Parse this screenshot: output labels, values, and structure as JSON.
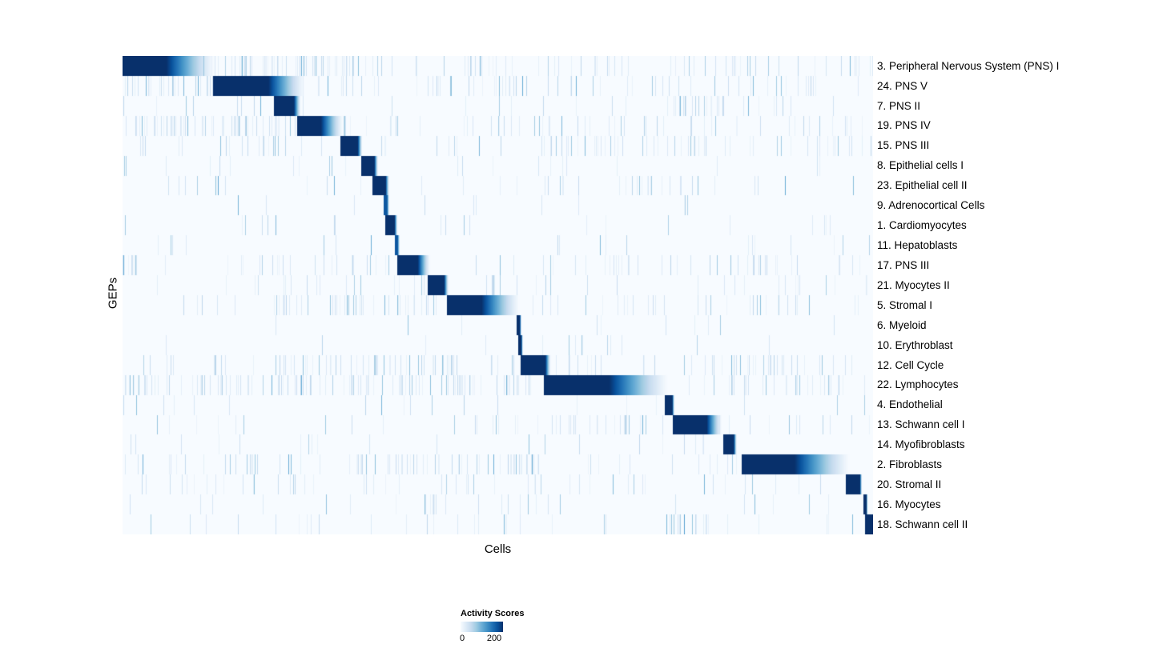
{
  "chart_data": {
    "type": "heatmap",
    "title": "",
    "xlabel": "Cells",
    "ylabel": "GEPs",
    "x_axis_note": "individual cells, unlabeled; positions given as fraction 0-1 of cell axis",
    "legend_position": "bottom-center",
    "colorbar": {
      "label": "Activity Scores",
      "min": 0,
      "max": 200,
      "colormap": [
        "#f7fbff",
        "#deebf7",
        "#c6dbef",
        "#9ecae1",
        "#6baed6",
        "#4292c6",
        "#2171b5",
        "#08519c",
        "#08306b"
      ]
    },
    "rows": [
      {
        "label": "3. Peripheral Nervous System (PNS) I",
        "block": {
          "start": 0.0,
          "full_end": 0.058,
          "end": 0.122,
          "value": 1.0
        },
        "noise": 0.45,
        "bands": [
          {
            "start": 0.12,
            "end": 0.35,
            "level": 0.35
          }
        ]
      },
      {
        "label": "24. PNS V",
        "block": {
          "start": 0.12,
          "full_end": 0.194,
          "end": 0.242,
          "value": 1.0
        },
        "noise": 0.4,
        "bands": [
          {
            "start": 0.0,
            "end": 0.12,
            "level": 0.35
          }
        ]
      },
      {
        "label": "7. PNS II",
        "block": {
          "start": 0.201,
          "full_end": 0.228,
          "end": 0.237,
          "value": 1.0
        },
        "noise": 0.15,
        "bands": [
          {
            "start": 0.72,
            "end": 0.81,
            "level": 0.5
          }
        ]
      },
      {
        "label": "19. PNS IV",
        "block": {
          "start": 0.232,
          "full_end": 0.264,
          "end": 0.293,
          "value": 1.0
        },
        "noise": 0.38,
        "bands": [
          {
            "start": 0.0,
            "end": 0.23,
            "level": 0.5
          }
        ]
      },
      {
        "label": "15. PNS III",
        "block": {
          "start": 0.29,
          "full_end": 0.313,
          "end": 0.319,
          "value": 1.0
        },
        "noise": 0.3,
        "bands": [
          {
            "start": 0.55,
            "end": 0.78,
            "level": 0.35
          }
        ]
      },
      {
        "label": "8. Epithelial cells I",
        "block": {
          "start": 0.317,
          "full_end": 0.335,
          "end": 0.34,
          "value": 1.0
        },
        "noise": 0.08
      },
      {
        "label": "23. Epithelial cell II",
        "block": {
          "start": 0.332,
          "full_end": 0.35,
          "end": 0.355,
          "value": 1.0
        },
        "noise": 0.1,
        "bands": [
          {
            "start": 0.55,
            "end": 0.75,
            "level": 0.22
          }
        ]
      },
      {
        "label": "9. Adrenocortical Cells",
        "block": {
          "start": 0.347,
          "full_end": 0.352,
          "end": 0.355,
          "value": 0.85
        },
        "noise": 0.05
      },
      {
        "label": "1. Cardiomyocytes",
        "block": {
          "start": 0.35,
          "full_end": 0.362,
          "end": 0.366,
          "value": 1.0
        },
        "noise": 0.06
      },
      {
        "label": "11. Hepatoblasts",
        "block": {
          "start": 0.362,
          "full_end": 0.366,
          "end": 0.369,
          "value": 0.85
        },
        "noise": 0.05
      },
      {
        "label": "17. PNS III",
        "block": {
          "start": 0.365,
          "full_end": 0.393,
          "end": 0.409,
          "value": 1.0
        },
        "noise": 0.28,
        "bands": [
          {
            "start": 0.0,
            "end": 0.02,
            "level": 0.8
          }
        ]
      },
      {
        "label": "21. Myocytes II",
        "block": {
          "start": 0.406,
          "full_end": 0.428,
          "end": 0.434,
          "value": 1.0
        },
        "noise": 0.18,
        "bands": [
          {
            "start": 0.985,
            "end": 1.0,
            "level": 0.8
          }
        ]
      },
      {
        "label": "5. Stromal I",
        "block": {
          "start": 0.432,
          "full_end": 0.478,
          "end": 0.528,
          "value": 1.0
        },
        "noise": 0.22,
        "bands": [
          {
            "start": 0.2,
            "end": 0.42,
            "level": 0.35
          },
          {
            "start": 0.82,
            "end": 0.86,
            "level": 0.35
          }
        ]
      },
      {
        "label": "6. Myeloid",
        "block": {
          "start": 0.525,
          "full_end": 0.529,
          "end": 0.531,
          "value": 1.0
        },
        "noise": 0.05
      },
      {
        "label": "10. Erythroblast",
        "block": {
          "start": 0.527,
          "full_end": 0.531,
          "end": 0.533,
          "value": 1.0
        },
        "noise": 0.05
      },
      {
        "label": "12. Cell Cycle",
        "block": {
          "start": 0.53,
          "full_end": 0.563,
          "end": 0.57,
          "value": 1.0
        },
        "noise": 0.32,
        "bands": [
          {
            "start": 0.2,
            "end": 0.45,
            "level": 0.4
          },
          {
            "start": 0.78,
            "end": 0.97,
            "level": 0.4
          }
        ]
      },
      {
        "label": "22. Lymphocytes",
        "block": {
          "start": 0.561,
          "full_end": 0.648,
          "end": 0.726,
          "value": 1.0
        },
        "noise": 0.38,
        "bands": [
          {
            "start": 0.0,
            "end": 0.55,
            "level": 0.35
          },
          {
            "start": 0.8,
            "end": 0.97,
            "level": 0.4
          }
        ]
      },
      {
        "label": "4. Endothelial",
        "block": {
          "start": 0.722,
          "full_end": 0.732,
          "end": 0.735,
          "value": 1.0
        },
        "noise": 0.08
      },
      {
        "label": "13. Schwann cell I",
        "block": {
          "start": 0.733,
          "full_end": 0.778,
          "end": 0.798,
          "value": 1.0
        },
        "noise": 0.28,
        "bands": [
          {
            "start": 0.55,
            "end": 0.72,
            "level": 0.32
          }
        ]
      },
      {
        "label": "14. Myofibroblasts",
        "block": {
          "start": 0.8,
          "full_end": 0.814,
          "end": 0.818,
          "value": 1.0
        },
        "noise": 0.1
      },
      {
        "label": "2. Fibroblasts",
        "block": {
          "start": 0.824,
          "full_end": 0.895,
          "end": 0.968,
          "value": 1.0
        },
        "noise": 0.28,
        "bands": [
          {
            "start": 0.3,
            "end": 0.55,
            "level": 0.32
          }
        ]
      },
      {
        "label": "20. Stromal II",
        "block": {
          "start": 0.963,
          "full_end": 0.982,
          "end": 0.985,
          "value": 1.0
        },
        "noise": 0.28
      },
      {
        "label": "16. Myocytes",
        "block": {
          "start": 0.987,
          "full_end": 0.991,
          "end": 0.992,
          "value": 1.0
        },
        "noise": 0.12,
        "bands": [
          {
            "start": 0.4,
            "end": 0.42,
            "level": 0.55
          }
        ]
      },
      {
        "label": "18. Schwann cell II",
        "block": {
          "start": 0.989,
          "full_end": 1.0,
          "end": 1.0,
          "value": 1.0
        },
        "noise": 0.15,
        "bands": [
          {
            "start": 0.73,
            "end": 0.8,
            "level": 0.5
          }
        ]
      }
    ]
  }
}
